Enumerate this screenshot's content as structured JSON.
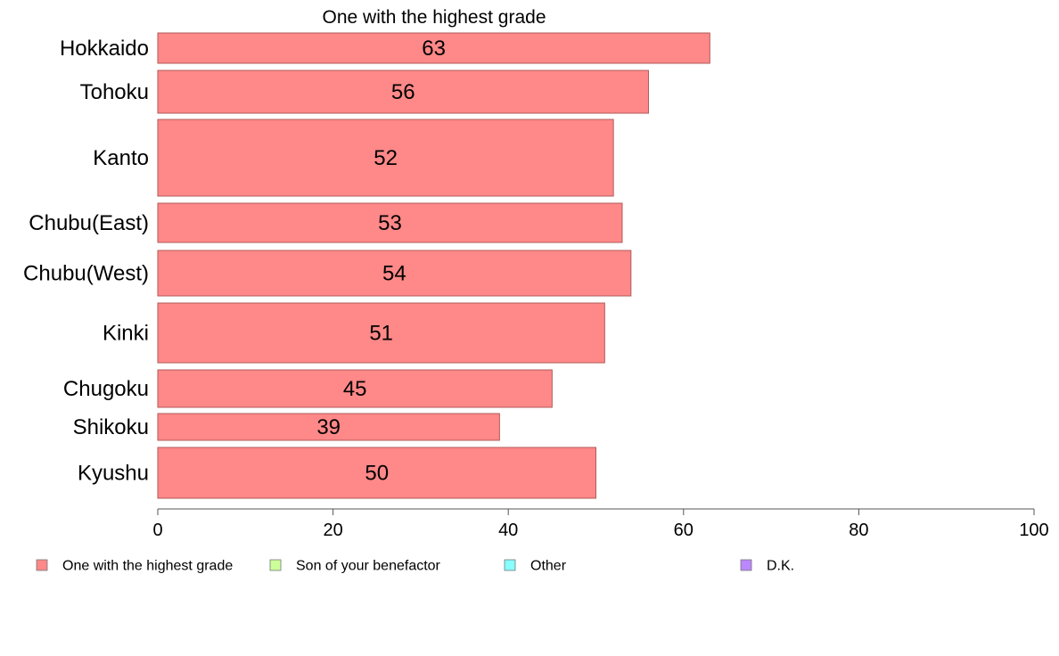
{
  "chart_data": {
    "type": "bar",
    "orientation": "horizontal",
    "title": "One with the highest grade",
    "categories": [
      "Hokkaido",
      "Tohoku",
      "Kanto",
      "Chubu(East)",
      "Chubu(West)",
      "Kinki",
      "Chugoku",
      "Shikoku",
      "Kyushu"
    ],
    "values": [
      63,
      56,
      52,
      53,
      54,
      51,
      45,
      39,
      50
    ],
    "value_labels": [
      "63",
      "56",
      "52",
      "53",
      "54",
      "51",
      "45",
      "39",
      "50"
    ],
    "xlim": [
      0,
      100
    ],
    "xticks": [
      0,
      20,
      40,
      60,
      80,
      100
    ],
    "xtick_labels": [
      "0",
      "20",
      "40",
      "60",
      "80",
      "100"
    ],
    "xlabel": "",
    "ylabel": "",
    "grid": false,
    "legend": {
      "placement": "bottom",
      "entries": [
        {
          "label": "One with the highest grade",
          "color": "#ff8888"
        },
        {
          "label": "Son of your benefactor",
          "color": "#ccff99"
        },
        {
          "label": "Other",
          "color": "#88ffff"
        },
        {
          "label": "D.K.",
          "color": "#bb88ff"
        }
      ]
    },
    "bar_color": "#ff8888",
    "bar_stroke": "#b05a5a"
  }
}
